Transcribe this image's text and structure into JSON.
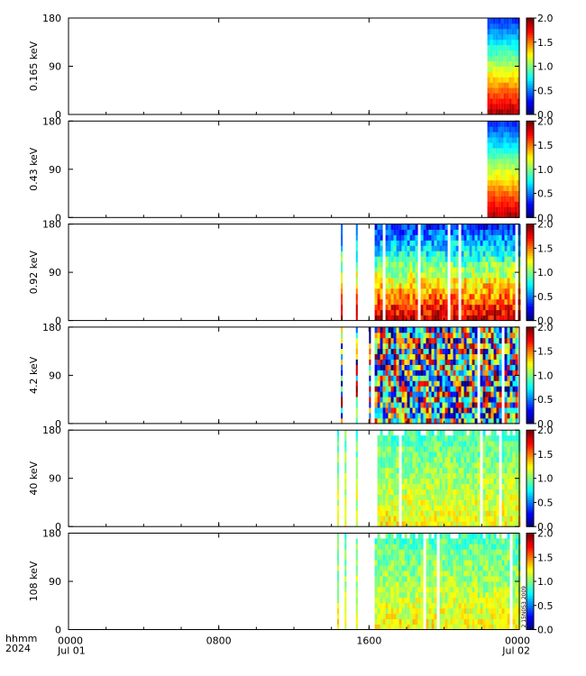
{
  "chart_data": {
    "type": "heatmap",
    "x_start": "2024-07-01 00:00",
    "x_end": "2024-07-02 00:00",
    "xlim_hours": [
      0,
      24
    ],
    "x_ticks": [
      {
        "hours": 0,
        "label": "0000",
        "sublabel": "Jul 01"
      },
      {
        "hours": 8,
        "label": "0800",
        "sublabel": ""
      },
      {
        "hours": 16,
        "label": "1600",
        "sublabel": ""
      },
      {
        "hours": 24,
        "label": "0000",
        "sublabel": "Jul 02"
      }
    ],
    "x_axis_rows": [
      "hhmm",
      "2024"
    ],
    "ylim": [
      0,
      180
    ],
    "y_ticks": [
      0,
      90,
      180
    ],
    "colorbar": {
      "range": [
        0.0,
        2.0
      ],
      "ticks": [
        "0.0",
        "0.5",
        "1.0",
        "1.5",
        "2.0"
      ]
    },
    "annotation": "2 15N0S3 2009",
    "panels": [
      {
        "label": "0.165 keV",
        "data_hours": [
          [
            22.3,
            24.0
          ]
        ],
        "style": "pad-low"
      },
      {
        "label": "0.43 keV",
        "data_hours": [
          [
            22.3,
            24.0
          ]
        ],
        "style": "pad-low"
      },
      {
        "label": "0.92 keV",
        "data_hours": [
          [
            14.5,
            14.6
          ],
          [
            15.3,
            15.4
          ],
          [
            16.3,
            24.0
          ]
        ],
        "style": "pad-low-noisy"
      },
      {
        "label": "4.2 keV",
        "data_hours": [
          [
            14.5,
            14.6
          ],
          [
            15.3,
            15.4
          ],
          [
            16.0,
            16.1
          ],
          [
            16.3,
            24.0
          ]
        ],
        "style": "mixed"
      },
      {
        "label": "40 keV",
        "data_hours": [
          [
            14.3,
            14.4
          ],
          [
            14.7,
            14.8
          ],
          [
            15.3,
            15.4
          ],
          [
            16.3,
            24.0
          ]
        ],
        "style": "green"
      },
      {
        "label": "108 keV",
        "data_hours": [
          [
            14.3,
            14.4
          ],
          [
            14.7,
            14.8
          ],
          [
            15.3,
            15.4
          ],
          [
            16.3,
            24.0
          ]
        ],
        "style": "green"
      }
    ]
  }
}
